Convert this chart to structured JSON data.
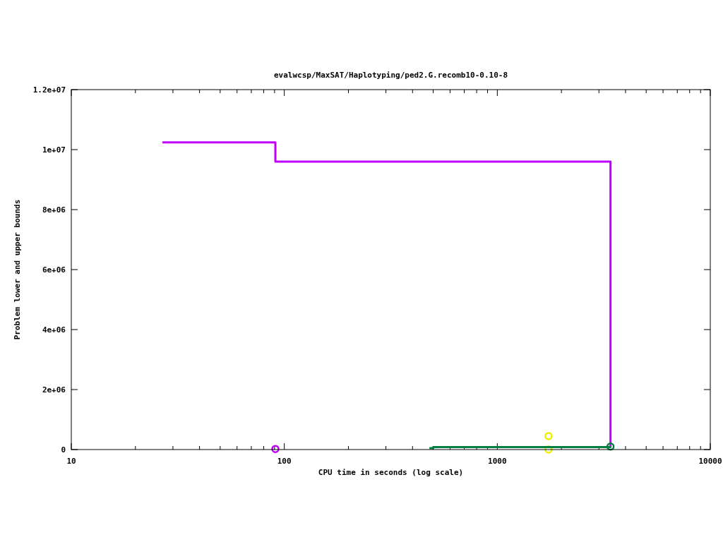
{
  "chart_data": {
    "type": "step",
    "title": "evalwcsp/MaxSAT/Haplotyping/ped2.G.recomb10-0.10-8",
    "xlabel": "CPU time in seconds (log scale)",
    "ylabel": "Problem lower and upper bounds",
    "log": "x",
    "grid": false,
    "xlim": [
      10,
      10000
    ],
    "xticks": [
      10,
      {
        "value": 20,
        "label": null
      },
      {
        "value": 30,
        "label": null
      },
      {
        "value": 40,
        "label": null
      },
      {
        "value": 50,
        "label": null
      },
      {
        "value": 60,
        "label": null
      },
      {
        "value": 70,
        "label": null
      },
      {
        "value": 80,
        "label": null
      },
      {
        "value": 90,
        "label": null
      },
      100,
      {
        "value": 200,
        "label": null
      },
      {
        "value": 300,
        "label": null
      },
      {
        "value": 400,
        "label": null
      },
      {
        "value": 500,
        "label": null
      },
      {
        "value": 600,
        "label": null
      },
      {
        "value": 700,
        "label": null
      },
      {
        "value": 800,
        "label": null
      },
      {
        "value": 900,
        "label": null
      },
      1000,
      {
        "value": 2000,
        "label": null
      },
      {
        "value": 3000,
        "label": null
      },
      {
        "value": 4000,
        "label": null
      },
      {
        "value": 5000,
        "label": null
      },
      {
        "value": 6000,
        "label": null
      },
      {
        "value": 7000,
        "label": null
      },
      {
        "value": 8000,
        "label": null
      },
      {
        "value": 9000,
        "label": null
      },
      10000
    ],
    "ylim": [
      0,
      12000000
    ],
    "yticks": [
      {
        "value": 0,
        "label": "0"
      },
      {
        "value": 2000000,
        "label": "2e+06"
      },
      {
        "value": 4000000,
        "label": "4e+06"
      },
      {
        "value": 6000000,
        "label": "6e+06"
      },
      {
        "value": 8000000,
        "label": "8e+06"
      },
      {
        "value": 10000000,
        "label": "1e+07"
      },
      {
        "value": 12000000,
        "label": "1.2e+07"
      }
    ],
    "series": [
      {
        "color": "#c000ff",
        "x": [
          26.8,
          90.8,
          3400,
          3400
        ],
        "values": [
          10240000,
          9600000,
          9600000,
          100000
        ]
      },
      {
        "type": "scatter",
        "color": "#c000ff",
        "x": [
          90.8
        ],
        "values": [
          20000
        ]
      },
      {
        "type": "scatter",
        "color": "#eeee00",
        "x": [
          1740,
          1740
        ],
        "values": [
          450000,
          0
        ]
      },
      {
        "color": "#007f3f",
        "x": [
          480,
          500,
          2650,
          3400
        ],
        "values": [
          50000,
          80000,
          80000,
          100000
        ]
      },
      {
        "type": "scatter",
        "color": "#007f3f",
        "x": [
          3400
        ],
        "values": [
          100000
        ]
      }
    ]
  }
}
